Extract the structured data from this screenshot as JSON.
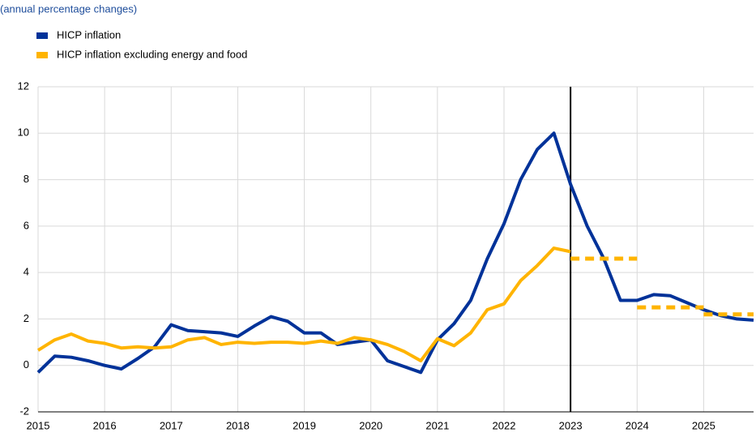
{
  "chart_data": {
    "type": "line",
    "subtitle": "(annual percentage changes)",
    "x": [
      2015,
      2015.25,
      2015.5,
      2015.75,
      2016,
      2016.25,
      2016.5,
      2016.75,
      2017,
      2017.25,
      2017.5,
      2017.75,
      2018,
      2018.25,
      2018.5,
      2018.75,
      2019,
      2019.25,
      2019.5,
      2019.75,
      2020,
      2020.25,
      2020.5,
      2020.75,
      2021,
      2021.25,
      2021.5,
      2021.75,
      2022,
      2022.25,
      2022.5,
      2022.75,
      2023,
      2023.25,
      2023.5,
      2023.75,
      2024,
      2024.25,
      2024.5,
      2024.75,
      2025,
      2025.25,
      2025.5,
      2025.75
    ],
    "series": [
      {
        "name": "HICP inflation",
        "color": "#003299",
        "values": [
          -0.3,
          0.4,
          0.35,
          0.2,
          0.0,
          -0.15,
          0.3,
          0.8,
          1.75,
          1.5,
          1.45,
          1.4,
          1.25,
          1.7,
          2.1,
          1.9,
          1.4,
          1.4,
          0.9,
          1.0,
          1.1,
          0.2,
          -0.05,
          -0.3,
          1.1,
          1.8,
          2.8,
          4.6,
          6.1,
          8.0,
          9.3,
          10.0,
          7.8,
          6.0,
          4.6,
          2.8,
          2.8,
          3.05,
          3.0,
          2.7,
          2.4,
          2.15,
          2.0,
          1.95
        ]
      },
      {
        "name": "HICP inflation excluding energy and food",
        "color": "#ffb400",
        "values": [
          0.65,
          1.1,
          1.35,
          1.05,
          0.95,
          0.75,
          0.8,
          0.75,
          0.8,
          1.1,
          1.2,
          0.9,
          1.0,
          0.95,
          1.0,
          1.0,
          0.95,
          1.05,
          0.95,
          1.2,
          1.1,
          0.9,
          0.6,
          0.2,
          1.15,
          0.85,
          1.4,
          2.4,
          2.65,
          3.65,
          4.3,
          5.05,
          4.9,
          null,
          null,
          null,
          null,
          null,
          null,
          null,
          null,
          null,
          null,
          null
        ]
      }
    ],
    "projections": {
      "color": "#ffb400",
      "x_start": [
        2023,
        2024,
        2025
      ],
      "x_end": [
        2024,
        2025,
        2025.75
      ],
      "values": [
        4.6,
        2.5,
        2.2
      ]
    },
    "vline": 2023,
    "xlim": [
      2015,
      2025.75
    ],
    "xticks": [
      2015,
      2016,
      2017,
      2018,
      2019,
      2020,
      2021,
      2022,
      2023,
      2024,
      2025
    ],
    "ylim": [
      -2,
      12
    ],
    "yticks": [
      -2,
      0,
      2,
      4,
      6,
      8,
      10,
      12
    ],
    "grid": true
  }
}
